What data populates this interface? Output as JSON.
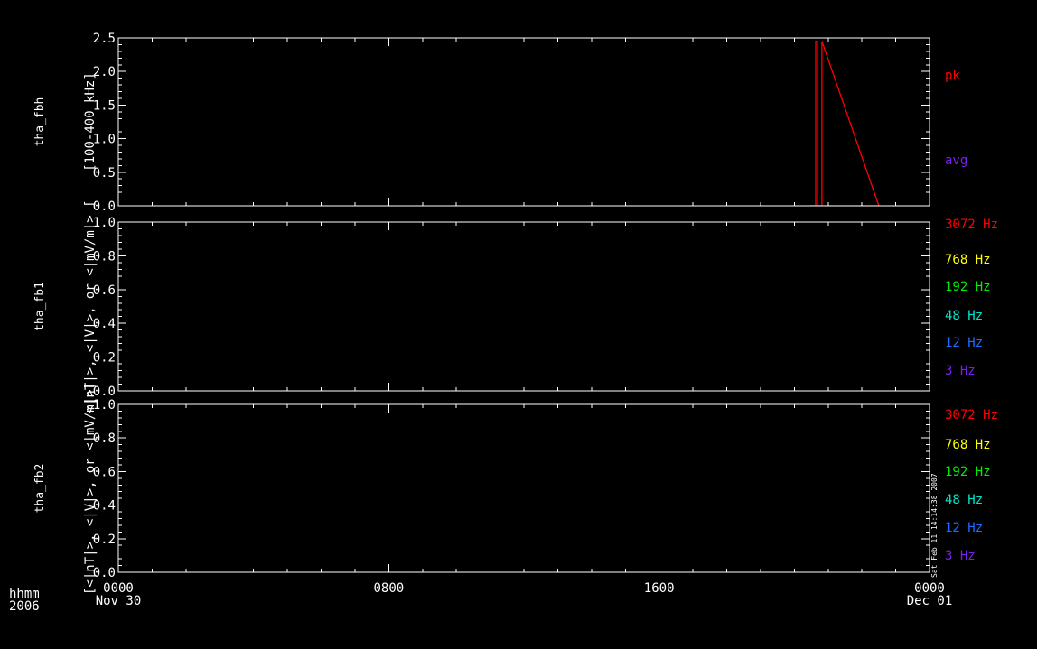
{
  "chart_data": {
    "type": "line",
    "x_axis": {
      "label_lines": [
        "hhmm",
        "2006"
      ],
      "ticks": [
        {
          "time": "2006-11-30T00:00",
          "lines": [
            "0000",
            "Nov 30"
          ]
        },
        {
          "time": "2006-11-30T08:00",
          "lines": [
            "0800"
          ]
        },
        {
          "time": "2006-11-30T16:00",
          "lines": [
            "1600"
          ]
        },
        {
          "time": "2006-12-01T00:00",
          "lines": [
            "0000",
            "Dec 01"
          ]
        }
      ],
      "range": [
        "2006-11-30T00:00",
        "2006-12-01T00:00"
      ]
    },
    "timestamp": "Sat Feb 11 14:14:38 2007",
    "panels": [
      {
        "title": "tha_fbh",
        "ylabel": "[100-400 kHz]",
        "ylim": [
          0,
          2.5
        ],
        "ytick_labels": [
          "0.0",
          "0.5",
          "1.0",
          "1.5",
          "2.0",
          "2.5"
        ],
        "legend": [
          {
            "label": "pk",
            "color": "#ff0000"
          },
          {
            "label": "avg",
            "color": "#7a1ef0"
          }
        ],
        "series": [
          {
            "name": "pk",
            "color": "#ff0000",
            "x": [
              "2006-11-30T20:28",
              "2006-11-30T20:38",
              "2006-11-30T20:38",
              "2006-11-30T20:41",
              "2006-11-30T20:41",
              "2006-11-30T20:49",
              "2006-11-30T20:49",
              "2006-11-30T22:30"
            ],
            "y": [
              0.0,
              0.0,
              2.45,
              2.45,
              0.0,
              0.0,
              2.45,
              0.0
            ]
          },
          {
            "name": "avg",
            "color": "#7a1ef0",
            "x": [
              "2006-11-30T20:28",
              "2006-11-30T22:30"
            ],
            "y": [
              0.0,
              0.0
            ]
          }
        ]
      },
      {
        "title": "tha_fb1",
        "ylabel": "<|nT|>, <|V|>, or <|mV/m|> [",
        "ylim": [
          0,
          1.0
        ],
        "ytick_labels": [
          "0.0",
          "0.2",
          "0.4",
          "0.6",
          "0.8",
          "1.0"
        ],
        "legend": [
          {
            "label": "3072 Hz",
            "color": "#ff0000"
          },
          {
            "label": "768 Hz",
            "color": "#ffff00"
          },
          {
            "label": "192 Hz",
            "color": "#00ee00"
          },
          {
            "label": "48 Hz",
            "color": "#00e5cc"
          },
          {
            "label": "12 Hz",
            "color": "#1e6bff"
          },
          {
            "label": "3 Hz",
            "color": "#7a1ef0"
          }
        ],
        "series": []
      },
      {
        "title": "tha_fb2",
        "ylabel": "[<|nT|>, <|V|>, or <|mV/m|>]",
        "ylim": [
          0,
          1.0
        ],
        "ytick_labels": [
          "0.0",
          "0.2",
          "0.4",
          "0.6",
          "0.8",
          "1.0"
        ],
        "legend": [
          {
            "label": "3072 Hz",
            "color": "#ff0000"
          },
          {
            "label": "768 Hz",
            "color": "#ffff00"
          },
          {
            "label": "192 Hz",
            "color": "#00ee00"
          },
          {
            "label": "48 Hz",
            "color": "#00e5cc"
          },
          {
            "label": "12 Hz",
            "color": "#1e6bff"
          },
          {
            "label": "3 Hz",
            "color": "#7a1ef0"
          }
        ],
        "series": []
      }
    ]
  }
}
